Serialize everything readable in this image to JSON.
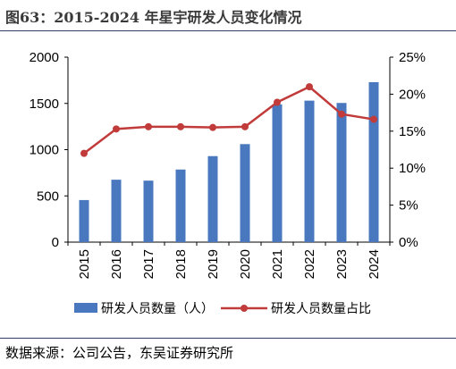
{
  "figure": {
    "title": "图63：2015-2024 年星宇研发人员变化情况",
    "source": "数据来源：公司公告，东吴证券研究所"
  },
  "colors": {
    "bar": "#4a78bf",
    "line": "#c13b3b",
    "rule": "#2f3f66"
  },
  "chart_data": {
    "type": "bar",
    "categories": [
      "2015",
      "2016",
      "2017",
      "2018",
      "2019",
      "2020",
      "2021",
      "2022",
      "2023",
      "2024"
    ],
    "series": [
      {
        "name": "研发人员数量（人）",
        "type": "bar",
        "axis": "left",
        "values": [
          455,
          675,
          665,
          785,
          930,
          1060,
          1490,
          1530,
          1505,
          1730
        ]
      },
      {
        "name": "研发人员数量占比",
        "type": "line",
        "axis": "right",
        "unit": "%",
        "values": [
          12.0,
          15.3,
          15.6,
          15.6,
          15.5,
          15.6,
          18.9,
          21.0,
          17.3,
          16.6
        ]
      }
    ],
    "y_left": {
      "ylim": [
        0,
        2000
      ],
      "ticks": [
        0,
        500,
        1000,
        1500,
        2000
      ]
    },
    "y_right": {
      "ylim": [
        0,
        25
      ],
      "ticks": [
        "0%",
        "5%",
        "10%",
        "15%",
        "20%",
        "25%"
      ]
    },
    "legend_position": "bottom",
    "grid": false
  }
}
